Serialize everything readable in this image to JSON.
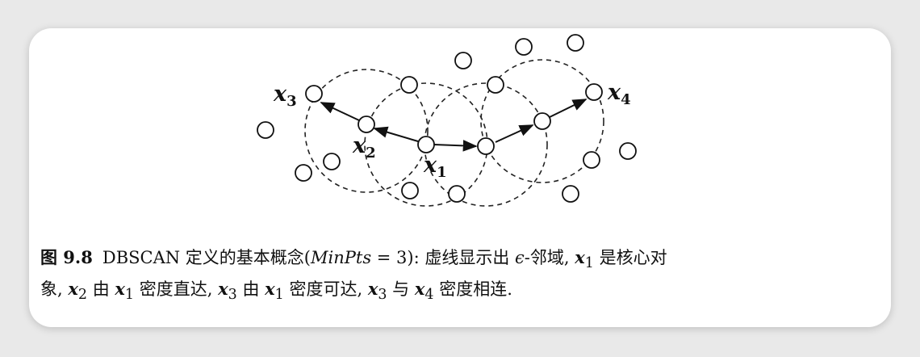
{
  "diagram": {
    "labels": {
      "x1": "x",
      "x1_sub": "1",
      "x2": "x",
      "x2_sub": "2",
      "x3": "x",
      "x3_sub": "3",
      "x4": "x",
      "x4_sub": "4"
    }
  },
  "caption": {
    "fig_label": "图 9.8",
    "line1_a": "DBSCAN 定义的基本概念(",
    "minpts": "MinPts",
    "line1_b": " = 3): 虚线显示出 ",
    "epsilon": "ϵ",
    "line1_c": "-邻域, ",
    "x1a": "x",
    "sub1a": "1",
    "line1_d": " 是核心对",
    "line2_a": "象, ",
    "x2a": "x",
    "sub2a": "2",
    "line2_b": " 由 ",
    "x1b": "x",
    "sub1b": "1",
    "line2_c": " 密度直达, ",
    "x3a": "x",
    "sub3a": "3",
    "line2_d": " 由 ",
    "x1c": "x",
    "sub1c": "1",
    "line2_e": " 密度可达, ",
    "x3b": "x",
    "sub3b": "3",
    "line2_f": " 与 ",
    "x4a": "x",
    "sub4a": "4",
    "line2_g": " 密度相连."
  }
}
